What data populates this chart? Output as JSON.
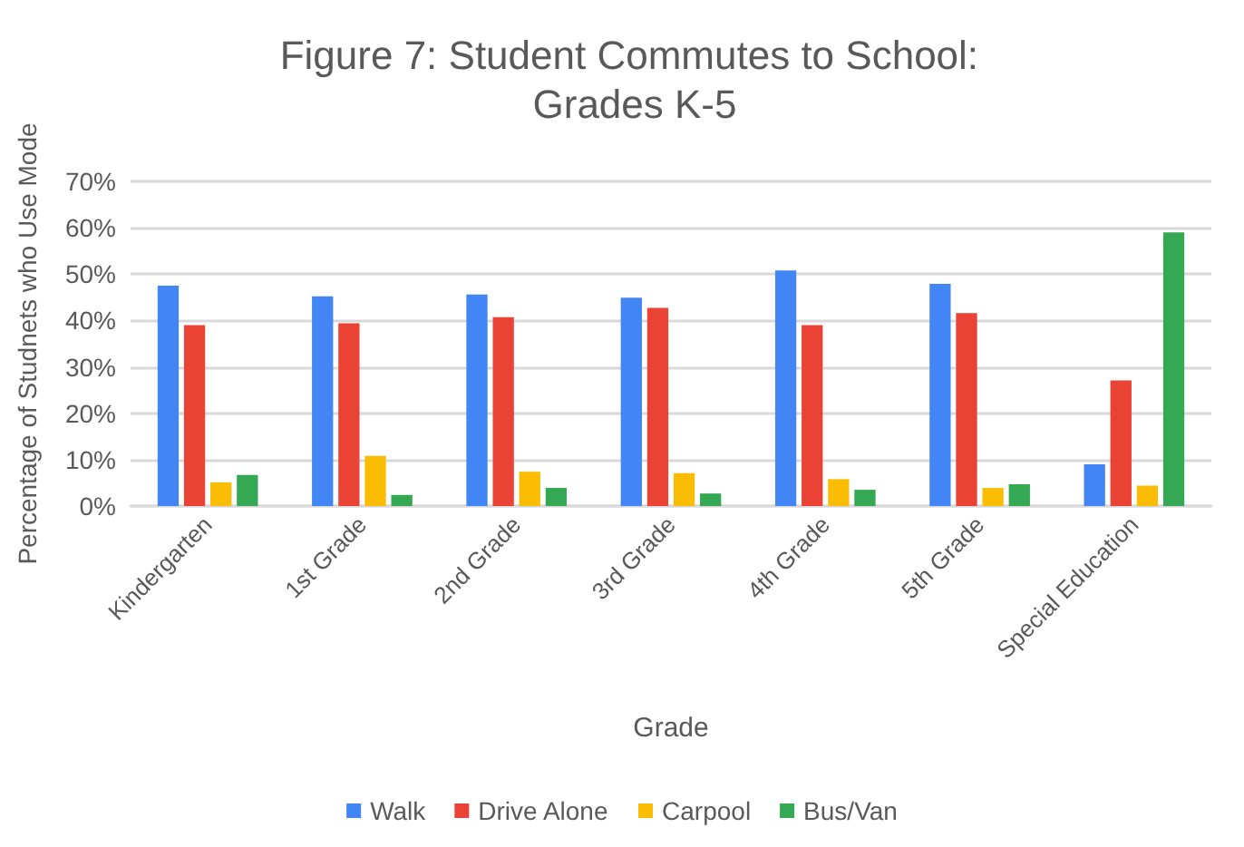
{
  "chart_data": {
    "type": "bar",
    "title": "Figure 7: Student Commutes to School: Grades K-5",
    "xlabel": "Grade",
    "ylabel": "Percentage of Studnets who Use Mode",
    "categories": [
      "Kindergarten",
      "1st Grade",
      "2nd Grade",
      "3rd Grade",
      "4th Grade",
      "5th Grade",
      "Special Education"
    ],
    "series": [
      {
        "name": "Walk",
        "color": "#4285f4",
        "values": [
          47.5,
          45.2,
          45.6,
          44.9,
          50.8,
          47.9,
          9.0
        ]
      },
      {
        "name": "Drive Alone",
        "color": "#ea4335",
        "values": [
          39.0,
          39.4,
          40.7,
          42.7,
          39.0,
          41.6,
          27.1
        ]
      },
      {
        "name": "Carpool",
        "color": "#fbbc04",
        "values": [
          5.1,
          10.8,
          7.4,
          7.1,
          5.8,
          3.9,
          4.4
        ]
      },
      {
        "name": "Bus/Van",
        "color": "#34a853",
        "values": [
          6.7,
          2.4,
          3.9,
          2.7,
          3.5,
          4.7,
          59.0
        ]
      }
    ],
    "ylim": [
      0,
      70
    ],
    "yticks": [
      {
        "value": 0,
        "label": "0%"
      },
      {
        "value": 10,
        "label": "10%"
      },
      {
        "value": 20,
        "label": "20%"
      },
      {
        "value": 30,
        "label": "30%"
      },
      {
        "value": 40,
        "label": "40%"
      },
      {
        "value": 50,
        "label": "50%"
      },
      {
        "value": 60,
        "label": "60%"
      },
      {
        "value": 70,
        "label": "70%"
      }
    ],
    "grid": "y",
    "legend": "bottom"
  }
}
